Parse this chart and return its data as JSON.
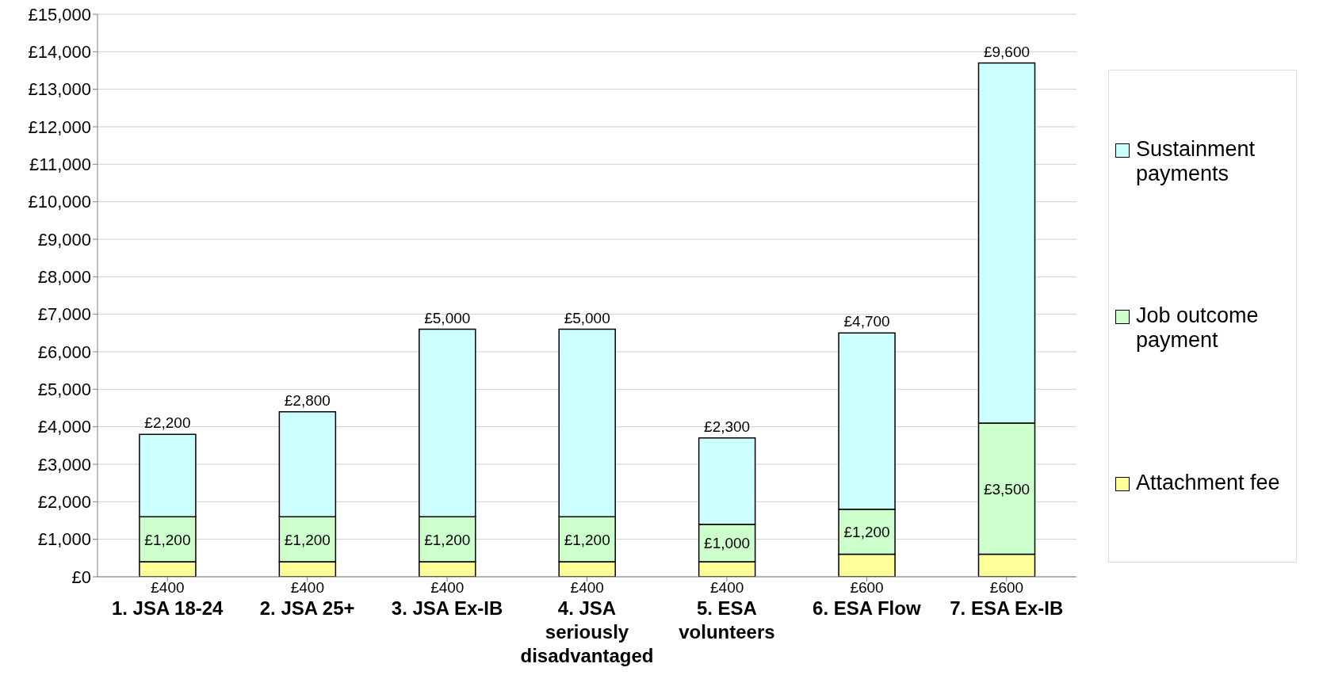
{
  "chart_data": {
    "type": "bar",
    "stacked": true,
    "categories": [
      "1. JSA 18-24",
      "2. JSA 25+",
      "3. JSA Ex-IB",
      "4. JSA seriously disadvantaged",
      "5. ESA volunteers",
      "6. ESA Flow",
      "7. ESA Ex-IB"
    ],
    "series": [
      {
        "name": "Attachment fee",
        "color": "#ffff99",
        "values": [
          400,
          400,
          400,
          400,
          400,
          600,
          600
        ],
        "value_labels": [
          "£400",
          "£400",
          "£400",
          "£400",
          "£400",
          "£600",
          "£600"
        ]
      },
      {
        "name": "Job outcome payment",
        "color": "#ccffcc",
        "values": [
          1200,
          1200,
          1200,
          1200,
          1000,
          1200,
          3500
        ],
        "value_labels": [
          "£1,200",
          "£1,200",
          "£1,200",
          "£1,200",
          "£1,000",
          "£1,200",
          "£3,500"
        ]
      },
      {
        "name": "Sustainment payments",
        "color": "#ccffff",
        "values": [
          2200,
          2800,
          5000,
          5000,
          2300,
          4700,
          9600
        ],
        "value_labels": [
          "£2,200",
          "£2,800",
          "£5,000",
          "£5,000",
          "£2,300",
          "£4,700",
          "£9,600"
        ]
      }
    ],
    "ylim": [
      0,
      15000
    ],
    "yticks": [
      {
        "value": 0,
        "label": "£0"
      },
      {
        "value": 1000,
        "label": "£1,000"
      },
      {
        "value": 2000,
        "label": "£2,000"
      },
      {
        "value": 3000,
        "label": "£3,000"
      },
      {
        "value": 4000,
        "label": "£4,000"
      },
      {
        "value": 5000,
        "label": "£5,000"
      },
      {
        "value": 6000,
        "label": "£6,000"
      },
      {
        "value": 7000,
        "label": "£7,000"
      },
      {
        "value": 8000,
        "label": "£8,000"
      },
      {
        "value": 9000,
        "label": "£9,000"
      },
      {
        "value": 10000,
        "label": "£10,000"
      },
      {
        "value": 11000,
        "label": "£11,000"
      },
      {
        "value": 12000,
        "label": "£12,000"
      },
      {
        "value": 13000,
        "label": "£13,000"
      },
      {
        "value": 14000,
        "label": "£14,000"
      },
      {
        "value": 15000,
        "label": "£15,000"
      }
    ],
    "grid": "y",
    "legend": "right"
  }
}
